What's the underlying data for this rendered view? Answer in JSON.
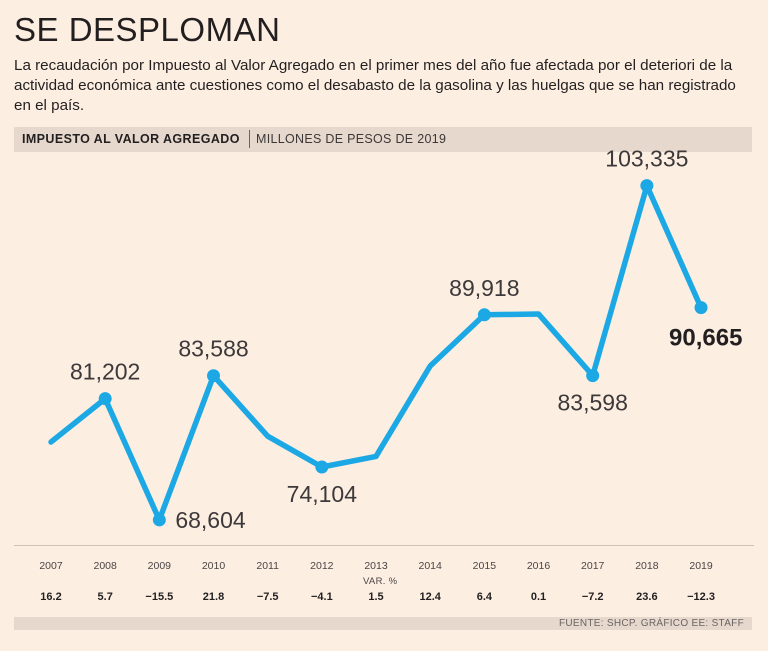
{
  "header": {
    "title": "SE DESPLOMAN",
    "subtitle": "La recaudación por Impuesto al Valor Agregado en el primer mes del año fue afectada por el deteriori de la actividad económica ante cuestiones como el desabasto de la gasolina y las huelgas que se han registrado en el país."
  },
  "band": {
    "title": "IMPUESTO AL VALOR AGREGADO",
    "units": "MILLONES DE PESOS DE 2019"
  },
  "var_label": "VAR. %",
  "source": "FUENTE: SHCP. GRÁFICO EE: STAFF",
  "colors": {
    "line": "#1ca8e4",
    "background": "#fcefe2",
    "band": "#e6d8cc"
  },
  "chart_data": {
    "type": "line",
    "title": "IMPUESTO AL VALOR AGREGADO",
    "ylabel": "MILLONES DE PESOS DE 2019",
    "x": [
      "2007",
      "2008",
      "2009",
      "2010",
      "2011",
      "2012",
      "2013",
      "2014",
      "2015",
      "2016",
      "2017",
      "2018",
      "2019"
    ],
    "values": [
      76700,
      81202,
      68604,
      83588,
      77300,
      74104,
      75200,
      84600,
      89918,
      90000,
      83598,
      103335,
      90665
    ],
    "labeled": [
      {
        "index": 1,
        "text": "81,202",
        "pos": "above"
      },
      {
        "index": 2,
        "text": "68,604",
        "pos": "right"
      },
      {
        "index": 3,
        "text": "83,588",
        "pos": "above"
      },
      {
        "index": 5,
        "text": "74,104",
        "pos": "below"
      },
      {
        "index": 8,
        "text": "89,918",
        "pos": "above"
      },
      {
        "index": 10,
        "text": "83,598",
        "pos": "below"
      },
      {
        "index": 11,
        "text": "103,335",
        "pos": "above"
      },
      {
        "index": 12,
        "text": "90,665",
        "pos": "right",
        "bold": true
      }
    ],
    "var_pct": [
      "16.2",
      "5.7",
      "−15.5",
      "21.8",
      "−7.5",
      "−4.1",
      "1.5",
      "12.4",
      "6.4",
      "0.1",
      "−7.2",
      "23.6",
      "−12.3"
    ],
    "ylim": [
      66000,
      106000
    ],
    "grid": false
  }
}
